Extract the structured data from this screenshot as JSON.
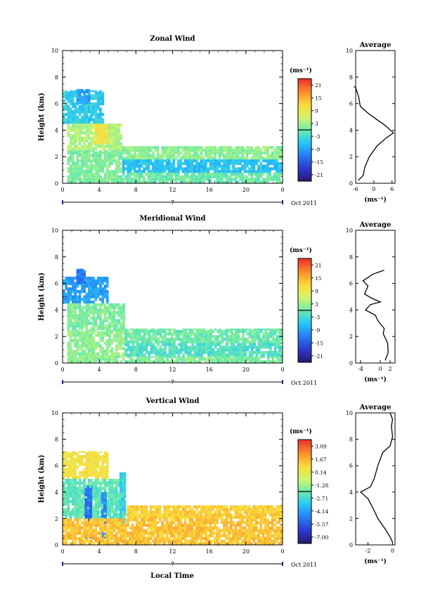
{
  "chart_data": [
    {
      "type": "heatmap",
      "title": "Zonal Wind",
      "ylabel": "Height (km)",
      "xlim": [
        0,
        24
      ],
      "ylim": [
        0,
        10
      ],
      "x_ticks": [
        "0",
        "4",
        "8",
        "12",
        "16",
        "20",
        "0"
      ],
      "y_ticks": [
        "0",
        "2",
        "4",
        "6",
        "8",
        "10"
      ],
      "date_marker": "7",
      "date_label": "Oct 2011",
      "colorbar": {
        "unit": "(ms⁻¹)",
        "ticks": [
          "21",
          "15",
          "9",
          "3",
          "-3",
          "-9",
          "-15",
          "-21"
        ],
        "range": [
          -24,
          24
        ]
      },
      "blocks": [
        {
          "x": [
            0,
            4.5
          ],
          "y": [
            4.5,
            7.0
          ],
          "value": -5
        },
        {
          "x": [
            1.5,
            3.0
          ],
          "y": [
            6.0,
            7.1
          ],
          "value": -9
        },
        {
          "x": [
            0.5,
            6.5
          ],
          "y": [
            2.5,
            4.5
          ],
          "value": 4
        },
        {
          "x": [
            3.5,
            5.0
          ],
          "y": [
            3.0,
            4.5
          ],
          "value": 10
        },
        {
          "x": [
            0.5,
            6.5
          ],
          "y": [
            0.0,
            2.5
          ],
          "value": 1
        },
        {
          "x": [
            6.5,
            24.0
          ],
          "y": [
            1.8,
            2.8
          ],
          "value": 2
        },
        {
          "x": [
            6.5,
            24.0
          ],
          "y": [
            0.8,
            1.8
          ],
          "value": -6
        },
        {
          "x": [
            6.5,
            24.0
          ],
          "y": [
            0.0,
            0.8
          ],
          "value": 0
        }
      ],
      "profile": {
        "title": "Average",
        "xlabel": "(ms⁻¹)",
        "x_ticks": [
          "-6",
          "0",
          "6"
        ],
        "xlim": [
          -6,
          7
        ],
        "y_ticks": [
          "0",
          "2",
          "4",
          "6",
          "8",
          "10"
        ],
        "ylim": [
          0,
          10
        ],
        "points": [
          [
            -5.2,
            0.2
          ],
          [
            -3.5,
            0.6
          ],
          [
            -3.0,
            1.2
          ],
          [
            -1.5,
            2.0
          ],
          [
            1.0,
            2.8
          ],
          [
            4.0,
            3.4
          ],
          [
            6.5,
            3.8
          ],
          [
            3.5,
            4.4
          ],
          [
            -1.5,
            5.2
          ],
          [
            -4.5,
            5.8
          ],
          [
            -5.0,
            6.5
          ],
          [
            -6.0,
            7.2
          ],
          [
            -6.5,
            7.3
          ]
        ]
      }
    },
    {
      "type": "heatmap",
      "title": "Meridional Wind",
      "ylabel": "Height (km)",
      "xlim": [
        0,
        24
      ],
      "ylim": [
        0,
        10
      ],
      "x_ticks": [
        "0",
        "4",
        "8",
        "12",
        "16",
        "20",
        "0"
      ],
      "y_ticks": [
        "0",
        "2",
        "4",
        "6",
        "8",
        "10"
      ],
      "date_marker": "7",
      "date_label": "Oct 2011",
      "colorbar": {
        "unit": "(ms⁻¹)",
        "ticks": [
          "21",
          "15",
          "9",
          "3",
          "-3",
          "-9",
          "-15",
          "-21"
        ],
        "range": [
          -24,
          24
        ]
      },
      "blocks": [
        {
          "x": [
            0,
            5.0
          ],
          "y": [
            4.5,
            6.5
          ],
          "value": -9
        },
        {
          "x": [
            1.5,
            2.5
          ],
          "y": [
            6.0,
            7.1
          ],
          "value": -12
        },
        {
          "x": [
            0.5,
            6.8
          ],
          "y": [
            2.5,
            4.5
          ],
          "value": 1
        },
        {
          "x": [
            0.5,
            6.8
          ],
          "y": [
            0.0,
            2.5
          ],
          "value": 2
        },
        {
          "x": [
            6.8,
            24.0
          ],
          "y": [
            1.5,
            2.6
          ],
          "value": 0
        },
        {
          "x": [
            6.8,
            24.0
          ],
          "y": [
            0.5,
            1.5
          ],
          "value": -2
        },
        {
          "x": [
            6.8,
            24.0
          ],
          "y": [
            0.0,
            0.5
          ],
          "value": 1
        }
      ],
      "profile": {
        "title": "Average",
        "xlabel": "(ms⁻¹)",
        "x_ticks": [
          "-4",
          "0",
          "2"
        ],
        "xlim": [
          -5,
          3
        ],
        "y_ticks": [
          "0",
          "2",
          "4",
          "6",
          "8",
          "10"
        ],
        "ylim": [
          0,
          10
        ],
        "points": [
          [
            1.0,
            0.2
          ],
          [
            1.6,
            0.8
          ],
          [
            1.5,
            1.5
          ],
          [
            0.6,
            2.2
          ],
          [
            0.8,
            2.6
          ],
          [
            -0.5,
            3.2
          ],
          [
            -1.0,
            3.6
          ],
          [
            -3.0,
            4.0
          ],
          [
            -2.0,
            4.4
          ],
          [
            0.0,
            4.6
          ],
          [
            -1.8,
            4.9
          ],
          [
            -3.2,
            5.2
          ],
          [
            -2.5,
            5.8
          ],
          [
            -3.5,
            6.2
          ],
          [
            -1.5,
            6.7
          ],
          [
            0.8,
            7.0
          ]
        ]
      }
    },
    {
      "type": "heatmap",
      "title": "Vertical Wind",
      "ylabel": "Height (km)",
      "xlabel": "Local Time",
      "xlim": [
        0,
        24
      ],
      "ylim": [
        0,
        10
      ],
      "x_ticks": [
        "0",
        "4",
        "8",
        "12",
        "16",
        "20",
        "0"
      ],
      "y_ticks": [
        "0",
        "2",
        "4",
        "6",
        "8",
        "10"
      ],
      "date_marker": "7",
      "date_label": "Oct 2011",
      "colorbar": {
        "unit": "(ms⁻¹)",
        "ticks": [
          "3.09",
          "1.67",
          "0.14",
          "-1.28",
          "-2.71",
          "-4.14",
          "-5.57",
          "-7.00"
        ],
        "range": [
          -7.7,
          3.8
        ]
      },
      "blocks": [
        {
          "x": [
            0,
            5.0
          ],
          "y": [
            5.0,
            7.1
          ],
          "value": 0.5
        },
        {
          "x": [
            0,
            6.8
          ],
          "y": [
            2.0,
            5.0
          ],
          "value": -2.2
        },
        {
          "x": [
            2.4,
            3.2
          ],
          "y": [
            0.5,
            4.5
          ],
          "value": -5.0
        },
        {
          "x": [
            4.2,
            4.8
          ],
          "y": [
            0.5,
            4.0
          ],
          "value": -4.5
        },
        {
          "x": [
            6.2,
            6.9
          ],
          "y": [
            1.0,
            5.5
          ],
          "value": -3.0
        },
        {
          "x": [
            0,
            24.0
          ],
          "y": [
            0.0,
            2.0
          ],
          "value": 1.3
        },
        {
          "x": [
            7.0,
            24.0
          ],
          "y": [
            2.0,
            3.0
          ],
          "value": 1.0
        }
      ],
      "profile": {
        "title": "Average",
        "xlabel": "(ms⁻¹)",
        "x_ticks": [
          "-2",
          "0"
        ],
        "xlim": [
          -3,
          0.2
        ],
        "y_ticks": [
          "0",
          "2",
          "4",
          "6",
          "8",
          "10"
        ],
        "ylim": [
          0,
          10
        ],
        "points": [
          [
            0.0,
            0.2
          ],
          [
            -0.2,
            0.6
          ],
          [
            -0.6,
            1.2
          ],
          [
            -1.2,
            2.0
          ],
          [
            -1.6,
            2.8
          ],
          [
            -2.0,
            3.5
          ],
          [
            -2.6,
            4.0
          ],
          [
            -1.8,
            4.4
          ],
          [
            -1.5,
            5.0
          ],
          [
            -1.2,
            6.0
          ],
          [
            -0.8,
            7.0
          ],
          [
            -0.2,
            7.5
          ],
          [
            0.0,
            8.2
          ],
          [
            -0.1,
            9.0
          ],
          [
            0.0,
            9.5
          ],
          [
            -0.2,
            10.0
          ]
        ]
      }
    }
  ],
  "xlabel": "Local Time"
}
